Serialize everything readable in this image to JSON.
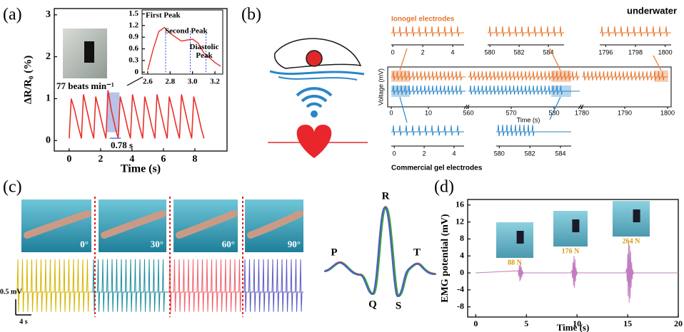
{
  "chart_data": [
    {
      "type": "line",
      "panel": "(a)",
      "xlabel": "Time (s)",
      "ylabel": "ΔR/R₀ (%)",
      "x": [
        0,
        0.13,
        0.35,
        0.6,
        0.78,
        0.91,
        1.13,
        1.38,
        1.56,
        1.69,
        1.91,
        2.16,
        2.34,
        2.47,
        2.69,
        2.94,
        3.12,
        3.25,
        3.47,
        3.72,
        3.9,
        4.03,
        4.25,
        4.5,
        4.68,
        4.81,
        5.03,
        5.28,
        5.46,
        5.59,
        5.81,
        6.06,
        6.24,
        6.37,
        6.59,
        6.84,
        7.02,
        7.15,
        7.37,
        7.62,
        7.8,
        7.93,
        8.15,
        8.4,
        8.58
      ],
      "series": [
        {
          "color": "#e8312a",
          "values": [
            0.05,
            1.0,
            0.72,
            0.3,
            0.05,
            1.1,
            0.72,
            0.3,
            0.05,
            1.05,
            0.72,
            0.3,
            0.05,
            1.2,
            0.72,
            0.3,
            0.05,
            1.05,
            0.72,
            0.3,
            0.05,
            1.1,
            0.72,
            0.3,
            0.05,
            1.05,
            0.72,
            0.3,
            0.05,
            1.1,
            0.72,
            0.3,
            0.05,
            1.05,
            0.72,
            0.3,
            0.05,
            1.1,
            0.72,
            0.3,
            0.05,
            1.05,
            0.72,
            0.3,
            0.05
          ]
        }
      ],
      "xlim": [
        -0.95,
        10.05
      ],
      "ylim": [
        -0.25,
        3.15
      ],
      "xticks": [
        0,
        2,
        4,
        6,
        8
      ],
      "yticks": [
        0,
        1,
        2,
        3
      ],
      "annotations": [
        "77 beats min⁻¹",
        "0.78 s"
      ],
      "highlight": {
        "x": [
          2.4,
          3.2
        ],
        "y": [
          0.2,
          1.15
        ]
      }
    },
    {
      "type": "line",
      "x": [
        2.6,
        2.65,
        2.7,
        2.75,
        2.8,
        2.9,
        3.0,
        3.05,
        3.1,
        3.2,
        3.25
      ],
      "series": [
        {
          "color": "#e8312a",
          "values": [
            0.05,
            0.6,
            1.05,
            1.15,
            1.0,
            0.8,
            0.85,
            0.75,
            0.5,
            0.25,
            0.15
          ]
        }
      ],
      "xlim": [
        2.55,
        3.27
      ],
      "ylim": [
        -0.05,
        1.6
      ],
      "xticks": [
        2.6,
        2.8,
        {
          "value": 3,
          "label": "3.0"
        },
        3.2
      ],
      "yticks": [
        0,
        0.3,
        0.6,
        0.9,
        1.2,
        1.5
      ],
      "annotations": [
        "First Peak",
        "Second Peak",
        "Diastolic Peak"
      ],
      "peak_x": [
        2.76,
        2.98,
        3.12
      ]
    },
    {
      "type": "signal-compare",
      "panel": "(b)",
      "title": "underwater",
      "ylabel": "Voltage (mV)",
      "xlabel": "Time (s)",
      "series": [
        {
          "name": "Ionogel electrodes",
          "color": "#e8742a"
        },
        {
          "name": "Commercial gel electrodes",
          "color": "#2a86c8"
        }
      ],
      "segments": [
        {
          "xlim": [
            0,
            20
          ],
          "xticks": [
            0,
            10
          ]
        },
        {
          "xlim": [
            560,
            586
          ],
          "xticks": [
            560,
            570,
            580
          ]
        },
        {
          "xlim": [
            1780,
            1800
          ],
          "xticks": [
            1780,
            1790,
            1800
          ]
        }
      ],
      "insets": [
        [
          {
            "xlim": [
              -0.1,
              4.76
            ],
            "xticks": [
              0,
              2,
              4
            ]
          },
          {
            "xlim": [
              579.85,
              585.07
            ],
            "xticks": [
              580,
              582,
              584
            ]
          },
          {
            "xlim": [
              1795.6,
              1800.4
            ],
            "xticks": [
              1796,
              1798,
              1800
            ]
          }
        ],
        [
          {
            "xlim": [
              -0.2,
              4.67
            ],
            "xticks": [
              0,
              2,
              4
            ]
          },
          {
            "xlim": [
              579.8,
              584.7
            ],
            "xticks": [
              580,
              582,
              584
            ]
          }
        ]
      ]
    },
    {
      "type": "ecg-angles",
      "panel": "(c)",
      "segments": [
        {
          "label": "0°",
          "color": "#d4b400"
        },
        {
          "label": "30°",
          "color": "#1e8e9c"
        },
        {
          "label": "60°",
          "color": "#f0606a"
        },
        {
          "label": "90°",
          "color": "#5a5ac2"
        }
      ],
      "scale_labels": [
        "0.5 mV",
        "4 s"
      ],
      "wave_labels": [
        "P",
        "Q",
        "R",
        "S",
        "T"
      ]
    },
    {
      "type": "line",
      "panel": "(d)",
      "xlabel": "Time (s)",
      "ylabel": "EMG potential (mV)",
      "x": [
        0,
        4.2,
        4.25,
        4.3,
        4.35,
        4.4,
        4.45,
        4.5,
        4.55,
        4.6,
        4.65,
        4.7,
        9.4,
        9.5,
        9.55,
        9.6,
        9.65,
        9.7,
        9.75,
        9.8,
        9.85,
        9.9,
        9.95,
        10.0,
        10.05,
        14.8,
        14.9,
        14.95,
        15.0,
        15.05,
        15.1,
        15.15,
        15.2,
        15.25,
        15.3,
        15.35,
        15.4,
        15.45,
        15.5,
        15.55,
        15.6,
        20
      ],
      "series": [
        {
          "color": "#c27cc0",
          "values": [
            0,
            0.5,
            -0.8,
            1.8,
            -2.0,
            2.4,
            -1.6,
            1.4,
            -1.0,
            0.6,
            -0.3,
            0,
            0,
            0.6,
            -1.2,
            2.5,
            -3.0,
            4.0,
            -3.5,
            3.2,
            -2.0,
            1.2,
            -0.6,
            0.2,
            0,
            0,
            1.0,
            -2.0,
            4.5,
            -5.5,
            7.5,
            -7.0,
            6.5,
            -6.0,
            5.0,
            -3.5,
            2.5,
            -1.5,
            0.8,
            -0.3,
            0,
            0
          ]
        }
      ],
      "xlim": [
        -0.8,
        20
      ],
      "ylim": [
        -10.4,
        17.3
      ],
      "xticks": [
        0,
        5,
        10,
        15,
        20
      ],
      "yticks": [
        -8,
        -4,
        0,
        4,
        8,
        12,
        16
      ],
      "annotations": [
        "88 N",
        "176 N",
        "264 N"
      ]
    }
  ]
}
